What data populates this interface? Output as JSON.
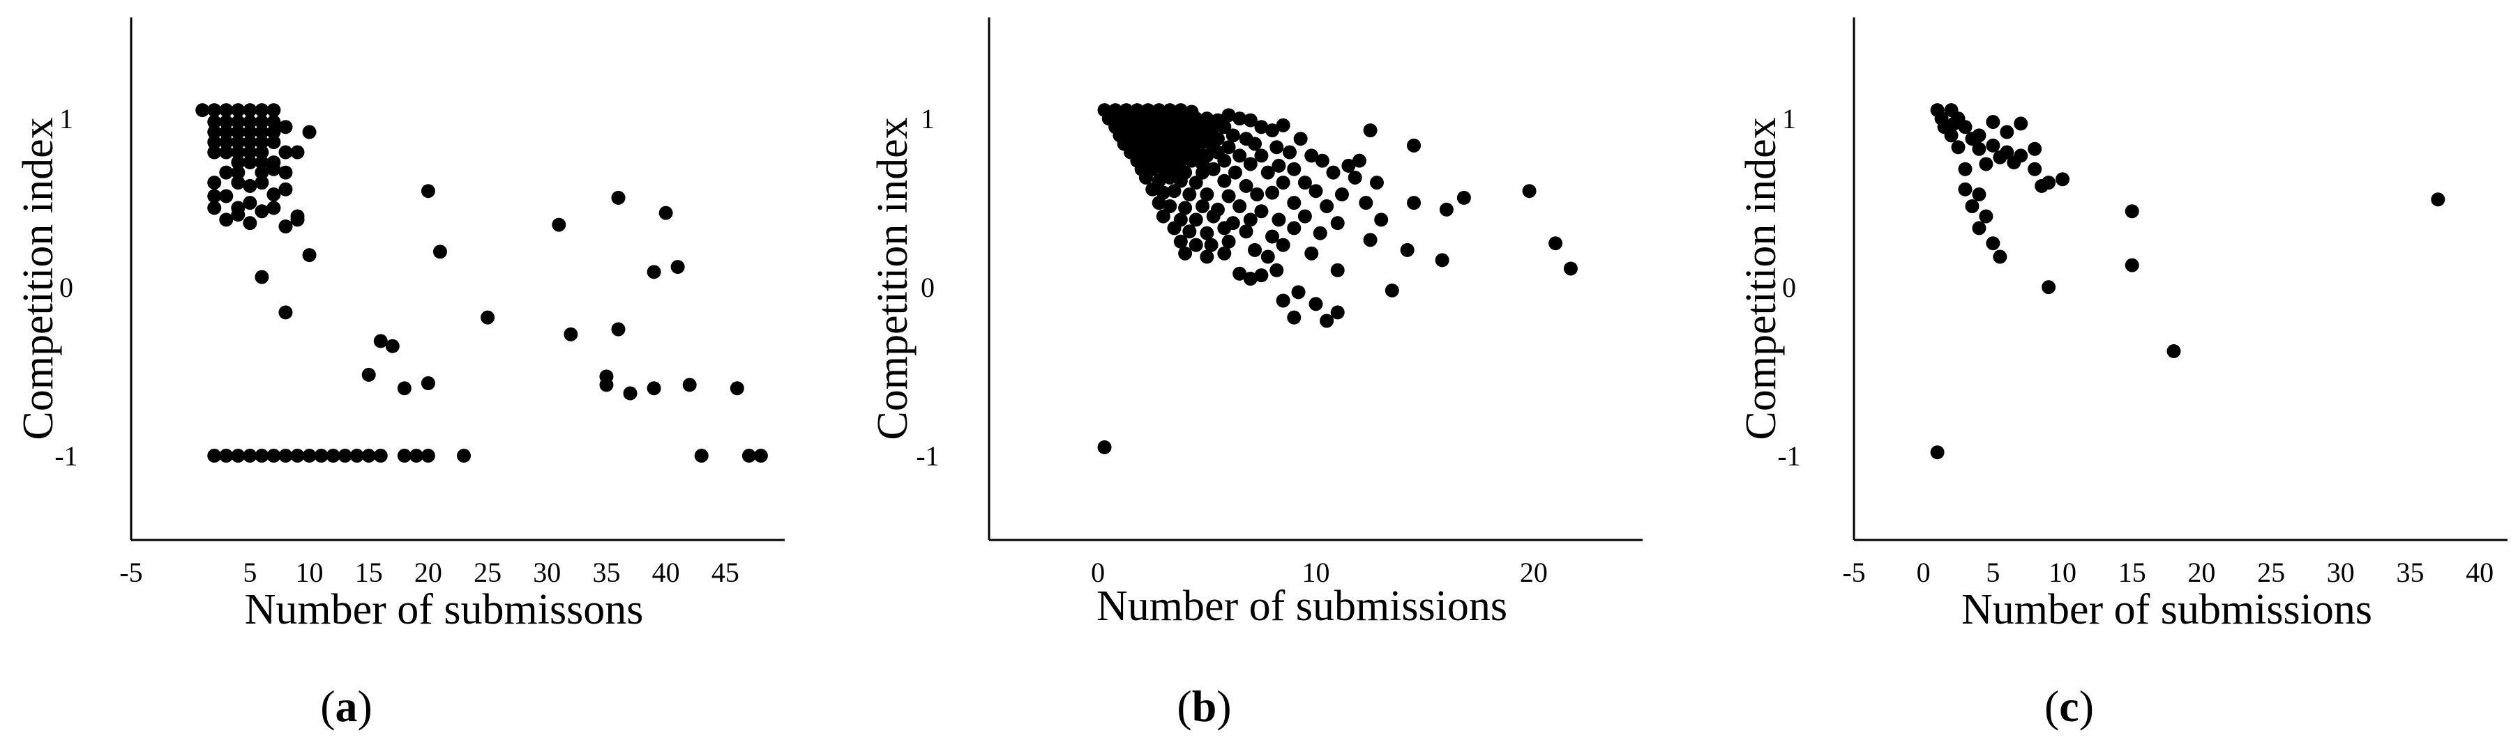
{
  "chart_data": [
    {
      "type": "scatter",
      "panel_label": {
        "open": "(",
        "letter": "a",
        "close": ")"
      },
      "xlabel": "Number of submissons",
      "ylabel": "Competition index",
      "xlim": [
        -5,
        50
      ],
      "ylim": [
        -1.5,
        1.6
      ],
      "xticks": [
        -5,
        5,
        10,
        15,
        20,
        25,
        30,
        35,
        40,
        45
      ],
      "yticks": [
        -1,
        0,
        1
      ],
      "points": [
        [
          1,
          1.05
        ],
        [
          2,
          1.05
        ],
        [
          3,
          1.05
        ],
        [
          4,
          1.05
        ],
        [
          5,
          1.05
        ],
        [
          6,
          1.05
        ],
        [
          7,
          1.05
        ],
        [
          2,
          0.98
        ],
        [
          3,
          0.98
        ],
        [
          4,
          0.98
        ],
        [
          5,
          0.98
        ],
        [
          6,
          0.98
        ],
        [
          7,
          0.98
        ],
        [
          2,
          0.92
        ],
        [
          3,
          0.92
        ],
        [
          4,
          0.92
        ],
        [
          5,
          0.92
        ],
        [
          6,
          0.92
        ],
        [
          7,
          0.92
        ],
        [
          8,
          0.95
        ],
        [
          10,
          0.92
        ],
        [
          2,
          0.86
        ],
        [
          3,
          0.86
        ],
        [
          4,
          0.86
        ],
        [
          5,
          0.86
        ],
        [
          6,
          0.86
        ],
        [
          7,
          0.86
        ],
        [
          2,
          0.8
        ],
        [
          3,
          0.8
        ],
        [
          4,
          0.8
        ],
        [
          5,
          0.8
        ],
        [
          6,
          0.8
        ],
        [
          8,
          0.8
        ],
        [
          9,
          0.8
        ],
        [
          4,
          0.74
        ],
        [
          5,
          0.74
        ],
        [
          6,
          0.74
        ],
        [
          7,
          0.74
        ],
        [
          3,
          0.68
        ],
        [
          4,
          0.68
        ],
        [
          6,
          0.68
        ],
        [
          7,
          0.7
        ],
        [
          8,
          0.68
        ],
        [
          2,
          0.62
        ],
        [
          4,
          0.62
        ],
        [
          5,
          0.6
        ],
        [
          6,
          0.62
        ],
        [
          2,
          0.54
        ],
        [
          3,
          0.54
        ],
        [
          5,
          0.5
        ],
        [
          7,
          0.55
        ],
        [
          8,
          0.58
        ],
        [
          2,
          0.47
        ],
        [
          4,
          0.47
        ],
        [
          6,
          0.45
        ],
        [
          7,
          0.47
        ],
        [
          9,
          0.42
        ],
        [
          3,
          0.4
        ],
        [
          5,
          0.38
        ],
        [
          8,
          0.36
        ],
        [
          9,
          0.4
        ],
        [
          4,
          0.43
        ],
        [
          10,
          0.19
        ],
        [
          6,
          0.06
        ],
        [
          8,
          -0.15
        ],
        [
          20,
          0.57
        ],
        [
          21,
          0.21
        ],
        [
          25,
          -0.18
        ],
        [
          31,
          0.37
        ],
        [
          32,
          -0.28
        ],
        [
          36,
          0.53
        ],
        [
          36,
          -0.25
        ],
        [
          35,
          -0.53
        ],
        [
          35,
          -0.58
        ],
        [
          37,
          -0.63
        ],
        [
          39,
          -0.6
        ],
        [
          39,
          0.09
        ],
        [
          40,
          0.44
        ],
        [
          41,
          0.12
        ],
        [
          42,
          -0.58
        ],
        [
          46,
          -0.6
        ],
        [
          15,
          -0.52
        ],
        [
          16,
          -0.32
        ],
        [
          17,
          -0.35
        ],
        [
          18,
          -0.6
        ],
        [
          20,
          -0.57
        ],
        [
          2,
          -1
        ],
        [
          3,
          -1
        ],
        [
          4,
          -1
        ],
        [
          5,
          -1
        ],
        [
          6,
          -1
        ],
        [
          7,
          -1
        ],
        [
          8,
          -1
        ],
        [
          9,
          -1
        ],
        [
          10,
          -1
        ],
        [
          11,
          -1
        ],
        [
          12,
          -1
        ],
        [
          13,
          -1
        ],
        [
          14,
          -1
        ],
        [
          15,
          -1
        ],
        [
          16,
          -1
        ],
        [
          18,
          -1
        ],
        [
          19,
          -1
        ],
        [
          20,
          -1
        ],
        [
          23,
          -1
        ],
        [
          43,
          -1
        ],
        [
          47,
          -1
        ],
        [
          48,
          -1
        ]
      ]
    },
    {
      "type": "scatter",
      "panel_label": {
        "open": "(",
        "letter": "b",
        "close": ")"
      },
      "xlabel": "Number of submissions",
      "ylabel": "Competition index",
      "xlim": [
        -5,
        25
      ],
      "ylim": [
        -1.5,
        1.6
      ],
      "xticks": [
        0,
        10,
        20
      ],
      "yticks": [
        -1,
        0,
        1
      ],
      "points": [
        [
          0.3,
          1.05
        ],
        [
          0.8,
          1.05
        ],
        [
          1.3,
          1.05
        ],
        [
          1.8,
          1.05
        ],
        [
          2.3,
          1.05
        ],
        [
          2.8,
          1.05
        ],
        [
          3.3,
          1.05
        ],
        [
          3.8,
          1.05
        ],
        [
          4.3,
          1.04
        ],
        [
          0.5,
          1.0
        ],
        [
          1.0,
          1.0
        ],
        [
          1.5,
          1.0
        ],
        [
          2.0,
          1.0
        ],
        [
          2.5,
          1.0
        ],
        [
          3.0,
          1.0
        ],
        [
          3.5,
          1.0
        ],
        [
          4.0,
          1.0
        ],
        [
          4.5,
          1.0
        ],
        [
          5.0,
          1.0
        ],
        [
          5.5,
          0.99
        ],
        [
          6.0,
          1.02
        ],
        [
          6.5,
          1.0
        ],
        [
          7.0,
          0.99
        ],
        [
          0.8,
          0.95
        ],
        [
          1.3,
          0.95
        ],
        [
          1.8,
          0.95
        ],
        [
          2.3,
          0.95
        ],
        [
          2.8,
          0.95
        ],
        [
          3.3,
          0.95
        ],
        [
          3.8,
          0.95
        ],
        [
          4.3,
          0.95
        ],
        [
          4.8,
          0.95
        ],
        [
          5.3,
          0.95
        ],
        [
          5.8,
          0.95
        ],
        [
          7.5,
          0.95
        ],
        [
          8.0,
          0.93
        ],
        [
          8.5,
          0.96
        ],
        [
          1.0,
          0.9
        ],
        [
          1.5,
          0.9
        ],
        [
          2.0,
          0.9
        ],
        [
          2.5,
          0.9
        ],
        [
          3.0,
          0.9
        ],
        [
          3.5,
          0.9
        ],
        [
          4.0,
          0.9
        ],
        [
          4.5,
          0.9
        ],
        [
          5.0,
          0.9
        ],
        [
          5.5,
          0.88
        ],
        [
          6.2,
          0.9
        ],
        [
          6.8,
          0.88
        ],
        [
          9.3,
          0.88
        ],
        [
          1.2,
          0.85
        ],
        [
          1.7,
          0.85
        ],
        [
          2.2,
          0.85
        ],
        [
          2.7,
          0.85
        ],
        [
          3.2,
          0.85
        ],
        [
          3.7,
          0.85
        ],
        [
          4.2,
          0.85
        ],
        [
          4.7,
          0.85
        ],
        [
          5.2,
          0.85
        ],
        [
          6.0,
          0.83
        ],
        [
          7.2,
          0.85
        ],
        [
          8.2,
          0.83
        ],
        [
          12.5,
          0.93
        ],
        [
          1.5,
          0.8
        ],
        [
          2.0,
          0.8
        ],
        [
          2.5,
          0.8
        ],
        [
          3.0,
          0.8
        ],
        [
          3.5,
          0.8
        ],
        [
          4.0,
          0.8
        ],
        [
          4.5,
          0.8
        ],
        [
          5.0,
          0.78
        ],
        [
          5.5,
          0.8
        ],
        [
          6.5,
          0.78
        ],
        [
          7.5,
          0.78
        ],
        [
          8.8,
          0.8
        ],
        [
          9.8,
          0.78
        ],
        [
          14.5,
          0.84
        ],
        [
          1.8,
          0.75
        ],
        [
          2.3,
          0.75
        ],
        [
          2.8,
          0.75
        ],
        [
          3.3,
          0.75
        ],
        [
          3.8,
          0.75
        ],
        [
          4.3,
          0.75
        ],
        [
          4.8,
          0.73
        ],
        [
          5.8,
          0.75
        ],
        [
          7.0,
          0.73
        ],
        [
          8.3,
          0.72
        ],
        [
          10.3,
          0.75
        ],
        [
          11.5,
          0.72
        ],
        [
          12.0,
          0.75
        ],
        [
          2.0,
          0.7
        ],
        [
          2.5,
          0.7
        ],
        [
          3.0,
          0.7
        ],
        [
          3.5,
          0.7
        ],
        [
          4.0,
          0.68
        ],
        [
          4.8,
          0.68
        ],
        [
          5.3,
          0.7
        ],
        [
          6.3,
          0.68
        ],
        [
          7.8,
          0.68
        ],
        [
          9.0,
          0.7
        ],
        [
          10.8,
          0.68
        ],
        [
          11.8,
          0.65
        ],
        [
          2.2,
          0.65
        ],
        [
          2.8,
          0.63
        ],
        [
          3.3,
          0.65
        ],
        [
          3.8,
          0.63
        ],
        [
          4.5,
          0.62
        ],
        [
          5.8,
          0.63
        ],
        [
          6.8,
          0.6
        ],
        [
          8.5,
          0.62
        ],
        [
          9.5,
          0.62
        ],
        [
          12.8,
          0.62
        ],
        [
          2.5,
          0.58
        ],
        [
          3.0,
          0.56
        ],
        [
          3.5,
          0.57
        ],
        [
          4.2,
          0.55
        ],
        [
          5.0,
          0.55
        ],
        [
          6.0,
          0.54
        ],
        [
          7.3,
          0.55
        ],
        [
          8.0,
          0.56
        ],
        [
          10.0,
          0.57
        ],
        [
          11.2,
          0.55
        ],
        [
          16.8,
          0.53
        ],
        [
          19.8,
          0.57
        ],
        [
          2.8,
          0.5
        ],
        [
          3.3,
          0.48
        ],
        [
          4.0,
          0.47
        ],
        [
          4.8,
          0.48
        ],
        [
          5.5,
          0.46
        ],
        [
          6.5,
          0.48
        ],
        [
          7.5,
          0.45
        ],
        [
          9.0,
          0.5
        ],
        [
          10.5,
          0.48
        ],
        [
          12.3,
          0.5
        ],
        [
          14.5,
          0.5
        ],
        [
          16.0,
          0.46
        ],
        [
          3.0,
          0.42
        ],
        [
          3.8,
          0.4
        ],
        [
          4.5,
          0.4
        ],
        [
          5.3,
          0.42
        ],
        [
          6.2,
          0.38
        ],
        [
          7.0,
          0.4
        ],
        [
          8.3,
          0.4
        ],
        [
          9.5,
          0.42
        ],
        [
          11.0,
          0.38
        ],
        [
          13.0,
          0.4
        ],
        [
          3.5,
          0.35
        ],
        [
          4.2,
          0.33
        ],
        [
          5.0,
          0.32
        ],
        [
          5.8,
          0.35
        ],
        [
          6.8,
          0.33
        ],
        [
          8.0,
          0.3
        ],
        [
          9.0,
          0.35
        ],
        [
          10.2,
          0.32
        ],
        [
          12.5,
          0.28
        ],
        [
          3.8,
          0.27
        ],
        [
          4.5,
          0.25
        ],
        [
          5.2,
          0.25
        ],
        [
          6.0,
          0.27
        ],
        [
          7.2,
          0.22
        ],
        [
          8.5,
          0.25
        ],
        [
          14.2,
          0.22
        ],
        [
          21.0,
          0.26
        ],
        [
          4.0,
          0.2
        ],
        [
          5.0,
          0.18
        ],
        [
          5.8,
          0.2
        ],
        [
          7.8,
          0.18
        ],
        [
          9.8,
          0.2
        ],
        [
          15.8,
          0.16
        ],
        [
          6.5,
          0.08
        ],
        [
          7.0,
          0.05
        ],
        [
          7.5,
          0.07
        ],
        [
          8.2,
          0.1
        ],
        [
          11.0,
          0.1
        ],
        [
          21.7,
          0.11
        ],
        [
          8.5,
          -0.08
        ],
        [
          9.2,
          -0.03
        ],
        [
          9.0,
          -0.18
        ],
        [
          10.0,
          -0.1
        ],
        [
          10.5,
          -0.2
        ],
        [
          11.0,
          -0.15
        ],
        [
          13.5,
          -0.02
        ],
        [
          0.3,
          -0.95
        ]
      ]
    },
    {
      "type": "scatter",
      "panel_label": {
        "open": "(",
        "letter": "c",
        "close": ")"
      },
      "xlabel": "Number of submissions",
      "ylabel": "Competition index",
      "xlim": [
        -5,
        42
      ],
      "ylim": [
        -1.5,
        1.6
      ],
      "xticks": [
        -5,
        0,
        5,
        10,
        15,
        20,
        25,
        30,
        35,
        40
      ],
      "yticks": [
        -1,
        0,
        1
      ],
      "points": [
        [
          1,
          1.05
        ],
        [
          2,
          1.05
        ],
        [
          1.3,
          1.0
        ],
        [
          2.5,
          1.0
        ],
        [
          1.5,
          0.95
        ],
        [
          3,
          0.95
        ],
        [
          2.2,
          0.97
        ],
        [
          2,
          0.9
        ],
        [
          4,
          0.9
        ],
        [
          5,
          0.98
        ],
        [
          7,
          0.97
        ],
        [
          3.5,
          0.88
        ],
        [
          6,
          0.92
        ],
        [
          2.5,
          0.83
        ],
        [
          4,
          0.82
        ],
        [
          5,
          0.84
        ],
        [
          6,
          0.8
        ],
        [
          8,
          0.82
        ],
        [
          7,
          0.78
        ],
        [
          5.5,
          0.77
        ],
        [
          6.5,
          0.74
        ],
        [
          4.5,
          0.73
        ],
        [
          3,
          0.7
        ],
        [
          8,
          0.7
        ],
        [
          9,
          0.62
        ],
        [
          10,
          0.64
        ],
        [
          8.5,
          0.6
        ],
        [
          3,
          0.58
        ],
        [
          4,
          0.55
        ],
        [
          3.5,
          0.48
        ],
        [
          4.5,
          0.42
        ],
        [
          4,
          0.35
        ],
        [
          5,
          0.26
        ],
        [
          5.5,
          0.18
        ],
        [
          15,
          0.45
        ],
        [
          37,
          0.52
        ],
        [
          15,
          0.13
        ],
        [
          9,
          0.0
        ],
        [
          18,
          -0.38
        ],
        [
          1,
          -0.98
        ]
      ]
    }
  ]
}
